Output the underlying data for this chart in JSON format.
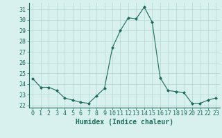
{
  "x": [
    0,
    1,
    2,
    3,
    4,
    5,
    6,
    7,
    8,
    9,
    10,
    11,
    12,
    13,
    14,
    15,
    16,
    17,
    18,
    19,
    20,
    21,
    22,
    23
  ],
  "y": [
    24.5,
    23.7,
    23.7,
    23.4,
    22.7,
    22.5,
    22.3,
    22.2,
    22.9,
    23.6,
    27.4,
    29.0,
    30.2,
    30.1,
    31.2,
    29.8,
    24.6,
    23.4,
    23.3,
    23.2,
    22.2,
    22.2,
    22.5,
    22.7
  ],
  "xlabel": "Humidex (Indice chaleur)",
  "xlim": [
    -0.5,
    23.5
  ],
  "ylim": [
    21.8,
    31.6
  ],
  "yticks": [
    22,
    23,
    24,
    25,
    26,
    27,
    28,
    29,
    30,
    31
  ],
  "xticks": [
    0,
    1,
    2,
    3,
    4,
    5,
    6,
    7,
    8,
    9,
    10,
    11,
    12,
    13,
    14,
    15,
    16,
    17,
    18,
    19,
    20,
    21,
    22,
    23
  ],
  "line_color": "#1a6b5a",
  "marker_color": "#1a6b5a",
  "bg_color": "#d8f0ee",
  "grid_color": "#b8dbd8",
  "label_fontsize": 7,
  "tick_fontsize": 6
}
